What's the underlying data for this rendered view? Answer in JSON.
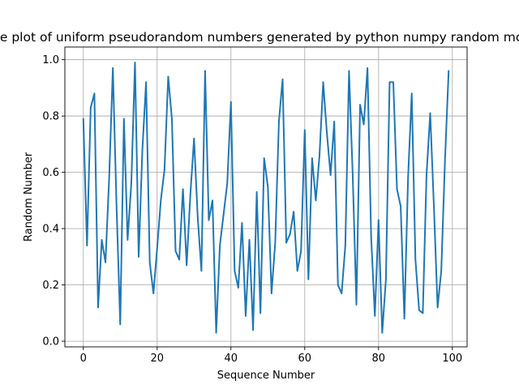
{
  "chart_data": {
    "type": "line",
    "title": "Line plot of uniform pseudorandom numbers generated by python numpy random module",
    "xlabel": "Sequence Number",
    "ylabel": "Random Number",
    "xlim": [
      -5,
      104
    ],
    "ylim": [
      -0.02,
      1.045
    ],
    "xticks": [
      0,
      20,
      40,
      60,
      80,
      100
    ],
    "yticks": [
      0.0,
      0.2,
      0.4,
      0.6,
      0.8,
      1.0
    ],
    "ytick_labels": [
      "0.0",
      "0.2",
      "0.4",
      "0.6",
      "0.8",
      "1.0"
    ],
    "grid": true,
    "color": "#1f77b4",
    "series": [
      {
        "x": [
          0,
          1,
          2,
          3,
          4,
          5,
          6,
          7,
          8,
          9,
          10,
          11,
          12,
          13,
          14,
          15,
          16,
          17,
          18,
          19,
          20,
          21,
          22,
          23,
          24,
          25,
          26,
          27,
          28,
          29,
          30,
          31,
          32,
          33,
          34,
          35,
          36,
          37,
          38,
          39,
          40,
          41,
          42,
          43,
          44,
          45,
          46,
          47,
          48,
          49,
          50,
          51,
          52,
          53,
          54,
          55,
          56,
          57,
          58,
          59,
          60,
          61,
          62,
          63,
          64,
          65,
          66,
          67,
          68,
          69,
          70,
          71,
          72,
          73,
          74,
          75,
          76,
          77,
          78,
          79,
          80,
          81,
          82,
          83,
          84,
          85,
          86,
          87,
          88,
          89,
          90,
          91,
          92,
          93,
          94,
          95,
          96,
          97,
          98,
          99
        ],
        "values": [
          0.79,
          0.34,
          0.83,
          0.88,
          0.12,
          0.36,
          0.28,
          0.58,
          0.97,
          0.48,
          0.06,
          0.79,
          0.36,
          0.56,
          0.99,
          0.3,
          0.68,
          0.92,
          0.28,
          0.17,
          0.33,
          0.5,
          0.61,
          0.94,
          0.79,
          0.32,
          0.29,
          0.54,
          0.27,
          0.52,
          0.72,
          0.44,
          0.25,
          0.96,
          0.43,
          0.5,
          0.03,
          0.34,
          0.45,
          0.56,
          0.85,
          0.25,
          0.19,
          0.42,
          0.09,
          0.36,
          0.04,
          0.53,
          0.1,
          0.65,
          0.55,
          0.17,
          0.35,
          0.78,
          0.93,
          0.35,
          0.38,
          0.46,
          0.25,
          0.32,
          0.75,
          0.22,
          0.65,
          0.5,
          0.66,
          0.92,
          0.74,
          0.59,
          0.78,
          0.2,
          0.17,
          0.34,
          0.96,
          0.59,
          0.13,
          0.84,
          0.77,
          0.97,
          0.37,
          0.09,
          0.43,
          0.03,
          0.22,
          0.92,
          0.92,
          0.54,
          0.48,
          0.08,
          0.58,
          0.88,
          0.29,
          0.11,
          0.1,
          0.59,
          0.81,
          0.48,
          0.12,
          0.25,
          0.64,
          0.96
        ]
      }
    ]
  }
}
